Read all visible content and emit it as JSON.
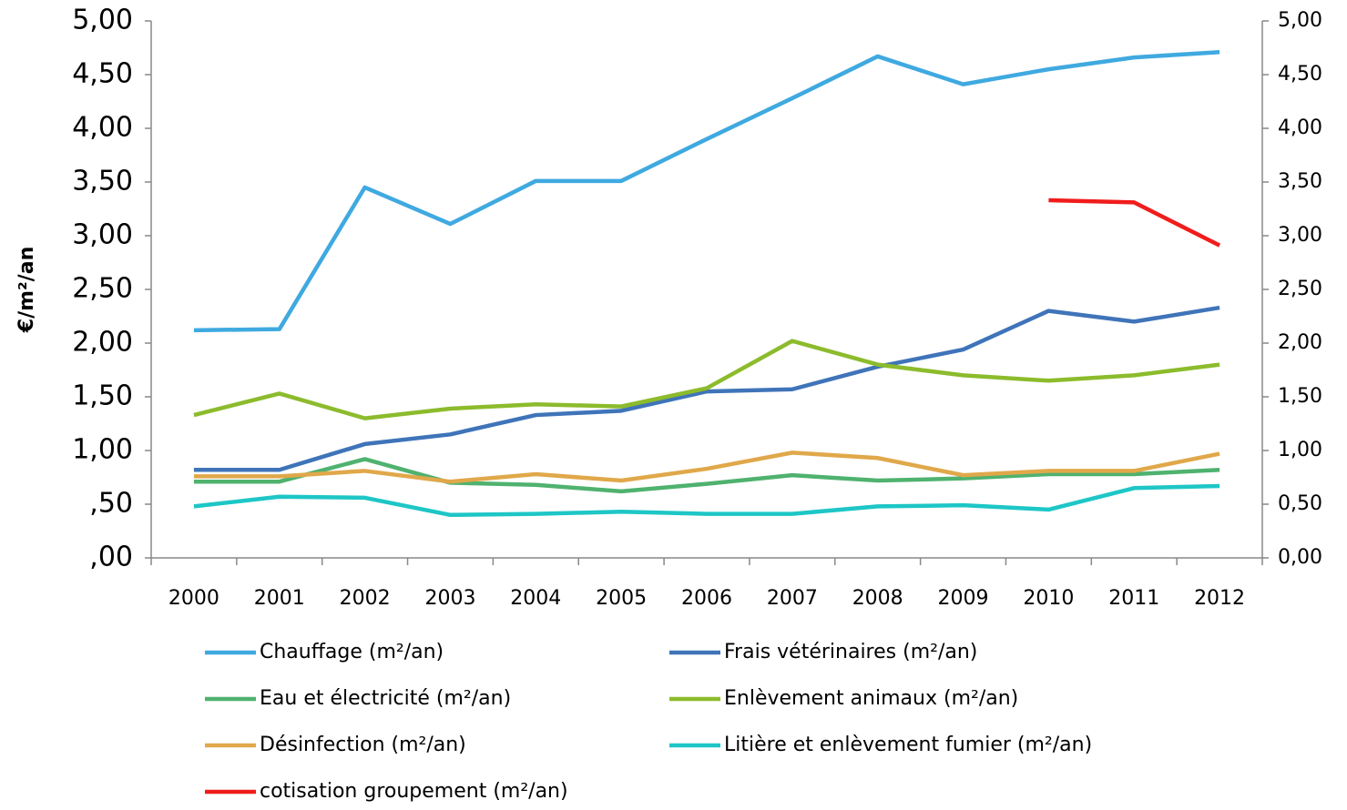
{
  "chart_data": {
    "type": "line",
    "y_label": "€/m²/an",
    "categories": [
      "2000",
      "2001",
      "2002",
      "2003",
      "2004",
      "2005",
      "2006",
      "2007",
      "2008",
      "2009",
      "2010",
      "2011",
      "2012"
    ],
    "series": [
      {
        "name": "Chauffage (m²/an)",
        "color": "#3fa9e0",
        "values": [
          2.12,
          2.13,
          3.45,
          3.11,
          3.51,
          3.51,
          3.9,
          4.28,
          4.67,
          4.41,
          4.55,
          4.66,
          4.71
        ]
      },
      {
        "name": "Frais vétérinaires (m²/an)",
        "color": "#3f74b9",
        "values": [
          0.82,
          0.82,
          1.06,
          1.15,
          1.33,
          1.37,
          1.55,
          1.57,
          1.78,
          1.94,
          2.3,
          2.2,
          2.33
        ]
      },
      {
        "name": "Eau et électricité (m²/an)",
        "color": "#4fb26f",
        "values": [
          0.71,
          0.71,
          0.92,
          0.7,
          0.68,
          0.62,
          0.69,
          0.77,
          0.72,
          0.74,
          0.78,
          0.78,
          0.82
        ]
      },
      {
        "name": "Enlèvement animaux (m²/an)",
        "color": "#8cbb2c",
        "values": [
          1.33,
          1.53,
          1.3,
          1.39,
          1.43,
          1.41,
          1.58,
          2.02,
          1.8,
          1.7,
          1.65,
          1.7,
          1.8
        ]
      },
      {
        "name": "Désinfection (m²/an)",
        "color": "#e0a84a",
        "values": [
          0.76,
          0.76,
          0.81,
          0.71,
          0.78,
          0.72,
          0.83,
          0.98,
          0.93,
          0.77,
          0.81,
          0.81,
          0.97
        ]
      },
      {
        "name": "Litière et enlèvement fumier (m²/an)",
        "color": "#1ec6c6",
        "values": [
          0.48,
          0.57,
          0.56,
          0.4,
          0.41,
          0.43,
          0.41,
          0.41,
          0.48,
          0.49,
          0.45,
          0.65,
          0.67
        ]
      },
      {
        "name": "cotisation groupement (m²/an)",
        "color": "#f01c1c",
        "values": [
          null,
          null,
          null,
          null,
          null,
          null,
          null,
          null,
          null,
          null,
          3.33,
          3.31,
          2.91
        ]
      }
    ],
    "ylim": [
      0,
      5
    ],
    "yticks": [
      {
        "value": 0,
        "label": ",00"
      },
      {
        "value": 0.5,
        "label": ",50"
      },
      {
        "value": 1,
        "label": "1,00"
      },
      {
        "value": 1.5,
        "label": "1,50"
      },
      {
        "value": 2,
        "label": "2,00"
      },
      {
        "value": 2.5,
        "label": "2,50"
      },
      {
        "value": 3,
        "label": "3,00"
      },
      {
        "value": 3.5,
        "label": "3,50"
      },
      {
        "value": 4,
        "label": "4,00"
      },
      {
        "value": 4.5,
        "label": "4,50"
      },
      {
        "value": 5,
        "label": "5,00"
      }
    ],
    "y2lim": [
      0,
      5
    ],
    "y2ticks": [
      {
        "value": 0,
        "label": "0,00"
      },
      {
        "value": 0.5,
        "label": "0,50"
      },
      {
        "value": 1,
        "label": "1,00"
      },
      {
        "value": 1.5,
        "label": "1,50"
      },
      {
        "value": 2,
        "label": "2,00"
      },
      {
        "value": 2.5,
        "label": "2,50"
      },
      {
        "value": 3,
        "label": "3,00"
      },
      {
        "value": 3.5,
        "label": "3,50"
      },
      {
        "value": 4,
        "label": "4,00"
      },
      {
        "value": 4.5,
        "label": "4,50"
      },
      {
        "value": 5,
        "label": "5,00"
      }
    ],
    "grid": false
  }
}
